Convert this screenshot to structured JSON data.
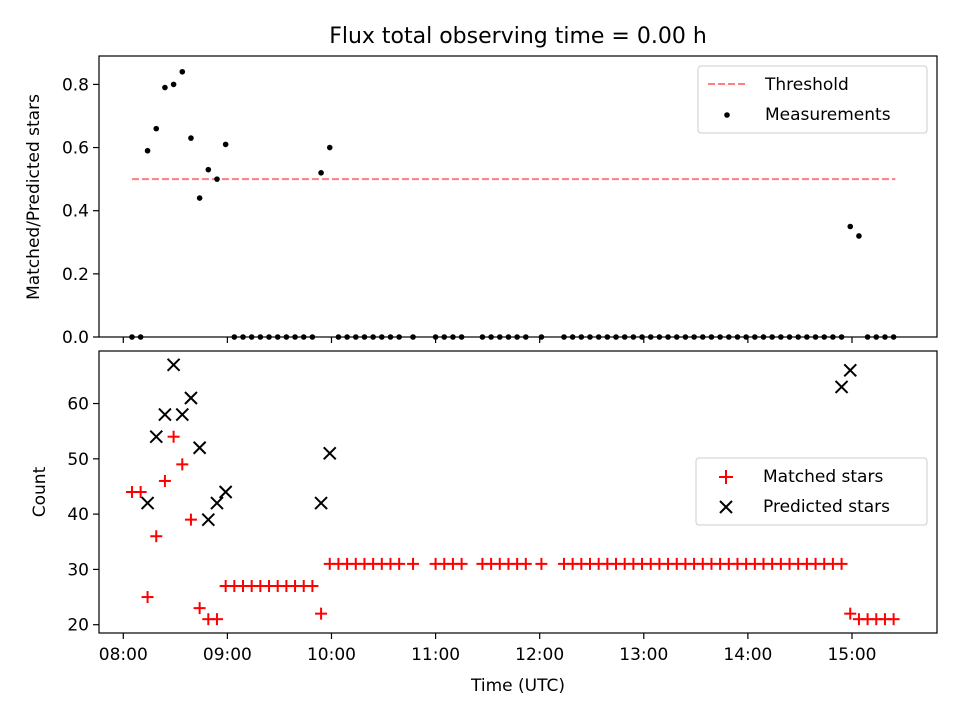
{
  "chart_data": [
    {
      "type": "scatter",
      "title": "Flux total observing time = 0.00 h",
      "xlabel": "",
      "ylabel": "Matched/Predicted stars",
      "xlim": [
        "07:46",
        "15:49"
      ],
      "ylim": [
        0,
        0.89
      ],
      "yticks": [
        0.0,
        0.2,
        0.4,
        0.6,
        0.8
      ],
      "ytick_labels": [
        "0.0",
        "0.2",
        "0.4",
        "0.6",
        "0.8"
      ],
      "grid": false,
      "legend": "top-right",
      "threshold": {
        "name": "Threshold",
        "value": 0.5,
        "x_range": [
          "08:05",
          "15:25"
        ],
        "color": "#ff7f7f",
        "style": "dashed"
      },
      "series": [
        {
          "name": "Measurements",
          "color": "#000000",
          "marker": "dot",
          "x": [
            "08:05",
            "08:10",
            "08:14",
            "08:19",
            "08:24",
            "08:29",
            "08:34",
            "08:39",
            "08:44",
            "08:49",
            "08:54",
            "08:59",
            "09:04",
            "09:09",
            "09:14",
            "09:19",
            "09:24",
            "09:29",
            "09:34",
            "09:39",
            "09:44",
            "09:49",
            "09:54",
            "09:59",
            "10:04",
            "10:09",
            "10:14",
            "10:19",
            "10:24",
            "10:29",
            "10:34",
            "10:39",
            "10:47",
            "11:00",
            "11:05",
            "11:10",
            "11:15",
            "11:27",
            "11:32",
            "11:37",
            "11:42",
            "11:47",
            "11:52",
            "12:01",
            "12:14",
            "12:19",
            "12:24",
            "12:29",
            "12:34",
            "12:39",
            "12:44",
            "12:49",
            "12:54",
            "12:59",
            "13:04",
            "13:09",
            "13:14",
            "13:19",
            "13:24",
            "13:29",
            "13:34",
            "13:39",
            "13:44",
            "13:49",
            "13:54",
            "13:59",
            "14:04",
            "14:09",
            "14:14",
            "14:19",
            "14:24",
            "14:29",
            "14:34",
            "14:39",
            "14:44",
            "14:49",
            "14:54",
            "14:59",
            "15:04",
            "15:09",
            "15:14",
            "15:19",
            "15:24"
          ],
          "y": [
            0,
            0,
            0.59,
            0.66,
            0.79,
            0.8,
            0.84,
            0.63,
            0.44,
            0.53,
            0.5,
            0.61,
            0,
            0,
            0,
            0,
            0,
            0,
            0,
            0,
            0,
            0,
            0.52,
            0.6,
            0,
            0,
            0,
            0,
            0,
            0,
            0,
            0,
            0,
            0,
            0,
            0,
            0,
            0,
            0,
            0,
            0,
            0,
            0,
            0,
            0,
            0,
            0,
            0,
            0,
            0,
            0,
            0,
            0,
            0,
            0,
            0,
            0,
            0,
            0,
            0,
            0,
            0,
            0,
            0,
            0,
            0,
            0,
            0,
            0,
            0,
            0,
            0,
            0,
            0,
            0,
            0,
            0,
            0.35,
            0.32,
            0,
            0,
            0,
            0
          ]
        }
      ]
    },
    {
      "type": "scatter",
      "title": "",
      "xlabel": "Time (UTC)",
      "ylabel": "Count",
      "xlim": [
        "07:46",
        "15:49"
      ],
      "ylim": [
        18.5,
        69.5
      ],
      "yticks": [
        20,
        30,
        40,
        50,
        60
      ],
      "ytick_labels": [
        "20",
        "30",
        "40",
        "50",
        "60"
      ],
      "xticks": [
        "08:00",
        "09:00",
        "10:00",
        "11:00",
        "12:00",
        "13:00",
        "14:00",
        "15:00"
      ],
      "grid": false,
      "legend": "center-right",
      "series": [
        {
          "name": "Matched stars",
          "color": "#ff0000",
          "marker": "plus",
          "x": [
            "08:05",
            "08:10",
            "08:14",
            "08:19",
            "08:24",
            "08:29",
            "08:34",
            "08:39",
            "08:44",
            "08:49",
            "08:54",
            "08:59",
            "09:04",
            "09:09",
            "09:14",
            "09:19",
            "09:24",
            "09:29",
            "09:34",
            "09:39",
            "09:44",
            "09:49",
            "09:54",
            "09:59",
            "10:04",
            "10:09",
            "10:14",
            "10:19",
            "10:24",
            "10:29",
            "10:34",
            "10:39",
            "10:47",
            "11:00",
            "11:05",
            "11:10",
            "11:15",
            "11:27",
            "11:32",
            "11:37",
            "11:42",
            "11:47",
            "11:52",
            "12:01",
            "12:14",
            "12:19",
            "12:24",
            "12:29",
            "12:34",
            "12:39",
            "12:44",
            "12:49",
            "12:54",
            "12:59",
            "13:04",
            "13:09",
            "13:14",
            "13:19",
            "13:24",
            "13:29",
            "13:34",
            "13:39",
            "13:44",
            "13:49",
            "13:54",
            "13:59",
            "14:04",
            "14:09",
            "14:14",
            "14:19",
            "14:24",
            "14:29",
            "14:34",
            "14:39",
            "14:44",
            "14:49",
            "14:54",
            "14:59",
            "15:04",
            "15:09",
            "15:14",
            "15:19",
            "15:24"
          ],
          "y": [
            44,
            44,
            25,
            36,
            46,
            54,
            49,
            39,
            23,
            21,
            21,
            27,
            27,
            27,
            27,
            27,
            27,
            27,
            27,
            27,
            27,
            27,
            22,
            31,
            31,
            31,
            31,
            31,
            31,
            31,
            31,
            31,
            31,
            31,
            31,
            31,
            31,
            31,
            31,
            31,
            31,
            31,
            31,
            31,
            31,
            31,
            31,
            31,
            31,
            31,
            31,
            31,
            31,
            31,
            31,
            31,
            31,
            31,
            31,
            31,
            31,
            31,
            31,
            31,
            31,
            31,
            31,
            31,
            31,
            31,
            31,
            31,
            31,
            31,
            31,
            31,
            31,
            22,
            21,
            21,
            21,
            21,
            21
          ]
        },
        {
          "name": "Predicted stars",
          "color": "#000000",
          "marker": "x",
          "x": [
            "08:14",
            "08:19",
            "08:24",
            "08:29",
            "08:34",
            "08:39",
            "08:44",
            "08:49",
            "08:54",
            "08:59",
            "09:54",
            "09:59",
            "14:54",
            "14:59"
          ],
          "y": [
            42,
            54,
            58,
            67,
            58,
            61,
            52,
            39,
            42,
            44,
            42,
            51,
            63,
            66
          ]
        }
      ]
    }
  ]
}
